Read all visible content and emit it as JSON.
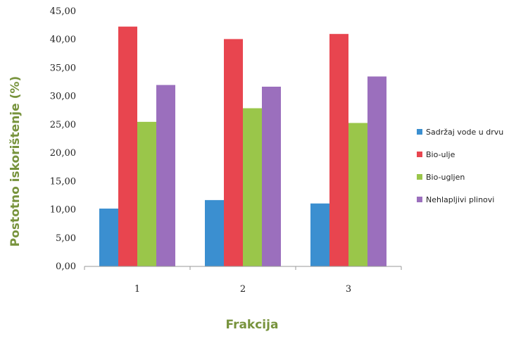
{
  "chart_data": {
    "type": "bar",
    "title": "",
    "xlabel": "Frakcija",
    "ylabel": "Postotno iskorištenje (%)",
    "categories": [
      "1",
      "2",
      "3"
    ],
    "series": [
      {
        "name": "Sadržaj vode u drvu",
        "color": "#3b8fd0",
        "values": [
          10.2,
          11.7,
          11.1
        ]
      },
      {
        "name": "Bio-ulje",
        "color": "#e8454f",
        "values": [
          42.3,
          40.1,
          41.0
        ]
      },
      {
        "name": "Bio-ugljen",
        "color": "#9ac64a",
        "values": [
          25.5,
          27.9,
          25.3
        ]
      },
      {
        "name": "Nehlapljivi plinovi",
        "color": "#9b6fbd",
        "values": [
          32.0,
          31.7,
          33.5
        ]
      }
    ],
    "ylim": [
      0,
      45
    ],
    "yticks": [
      "0,00",
      "5,00",
      "10,00",
      "15,00",
      "20,00",
      "25,00",
      "30,00",
      "35,00",
      "40,00",
      "45,00"
    ],
    "grid": false,
    "legend_position": "right"
  }
}
